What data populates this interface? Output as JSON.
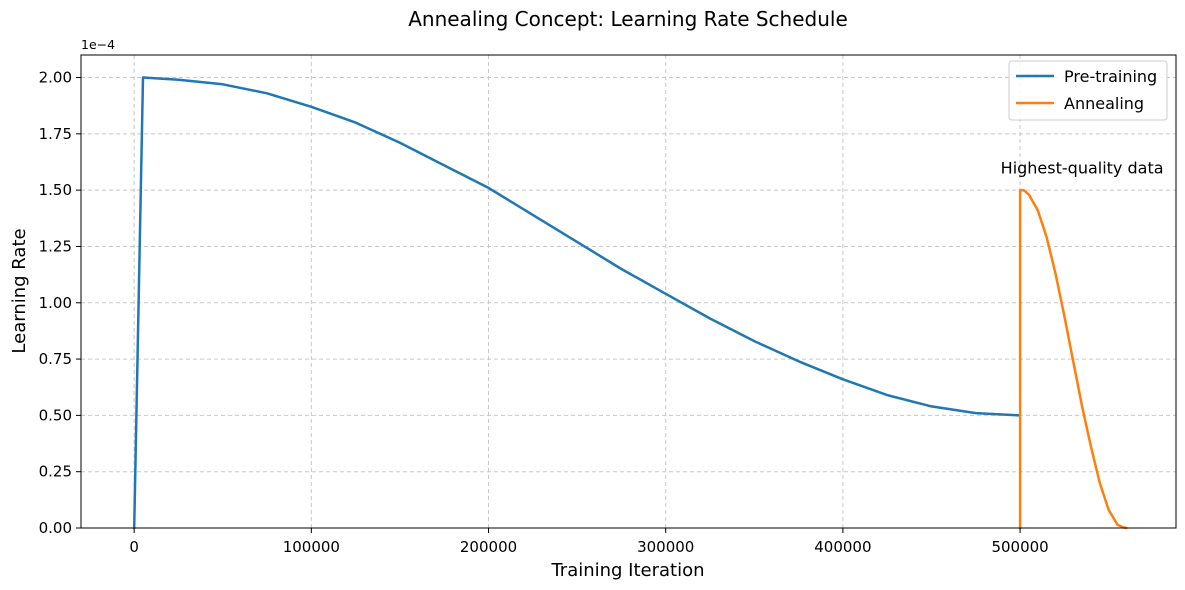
{
  "chart_data": {
    "type": "line",
    "title": "Annealing Concept: Learning Rate Schedule",
    "xlabel": "Training Iteration",
    "ylabel": "Learning Rate",
    "y_offset_label": "1e−4",
    "xlim": [
      -30000,
      588000
    ],
    "ylim": [
      0,
      2.1
    ],
    "x_ticks": [
      0,
      100000,
      200000,
      300000,
      400000,
      500000
    ],
    "x_tick_labels": [
      "0",
      "100000",
      "200000",
      "300000",
      "400000",
      "500000"
    ],
    "y_ticks": [
      0,
      0.25,
      0.5,
      0.75,
      1.0,
      1.25,
      1.5,
      1.75,
      2.0
    ],
    "y_tick_labels": [
      "0.00",
      "0.25",
      "0.50",
      "0.75",
      "1.00",
      "1.25",
      "1.50",
      "1.75",
      "2.00"
    ],
    "grid": true,
    "legend_position": "top-right",
    "series": [
      {
        "name": "Pre-training",
        "color": "#1f77b4",
        "x": [
          0,
          5000,
          25000,
          50000,
          75000,
          100000,
          125000,
          150000,
          175000,
          200000,
          225000,
          250000,
          275000,
          300000,
          325000,
          350000,
          375000,
          400000,
          425000,
          450000,
          475000,
          500000
        ],
        "y": [
          0,
          2.0,
          1.99,
          1.97,
          1.93,
          1.87,
          1.8,
          1.71,
          1.61,
          1.51,
          1.39,
          1.27,
          1.15,
          1.04,
          0.93,
          0.83,
          0.74,
          0.66,
          0.59,
          0.54,
          0.51,
          0.5
        ]
      },
      {
        "name": "Annealing",
        "color": "#ff7f0e",
        "x": [
          500000,
          500000,
          502000,
          505000,
          510000,
          515000,
          520000,
          525000,
          530000,
          535000,
          540000,
          545000,
          550000,
          555000,
          558000,
          560000
        ],
        "y": [
          0,
          1.5,
          1.5,
          1.48,
          1.41,
          1.29,
          1.13,
          0.94,
          0.74,
          0.54,
          0.36,
          0.2,
          0.08,
          0.015,
          0.003,
          0
        ]
      }
    ],
    "annotations": [
      {
        "text": "Highest-quality data",
        "x": 535000,
        "y": 1.6
      }
    ]
  }
}
